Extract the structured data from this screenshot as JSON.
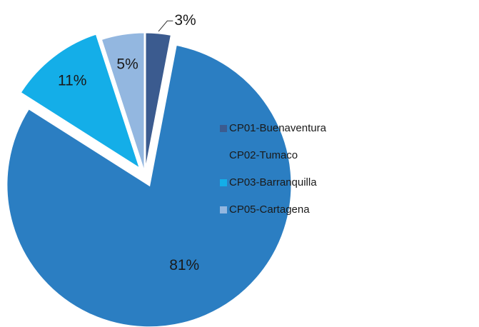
{
  "chart_data": {
    "type": "pie",
    "categories": [
      "CP01-Buenaventura",
      "CP02-Tumaco",
      "CP03-Barranquilla",
      "CP05-Cartagena"
    ],
    "values": [
      3,
      81,
      11,
      5
    ],
    "value_labels": [
      "3%",
      "81%",
      "11%",
      "5%"
    ],
    "colors": [
      "#3b5b8f",
      "#2b7ec2",
      "#14aee8",
      "#93b7e0"
    ],
    "legend": "right"
  }
}
